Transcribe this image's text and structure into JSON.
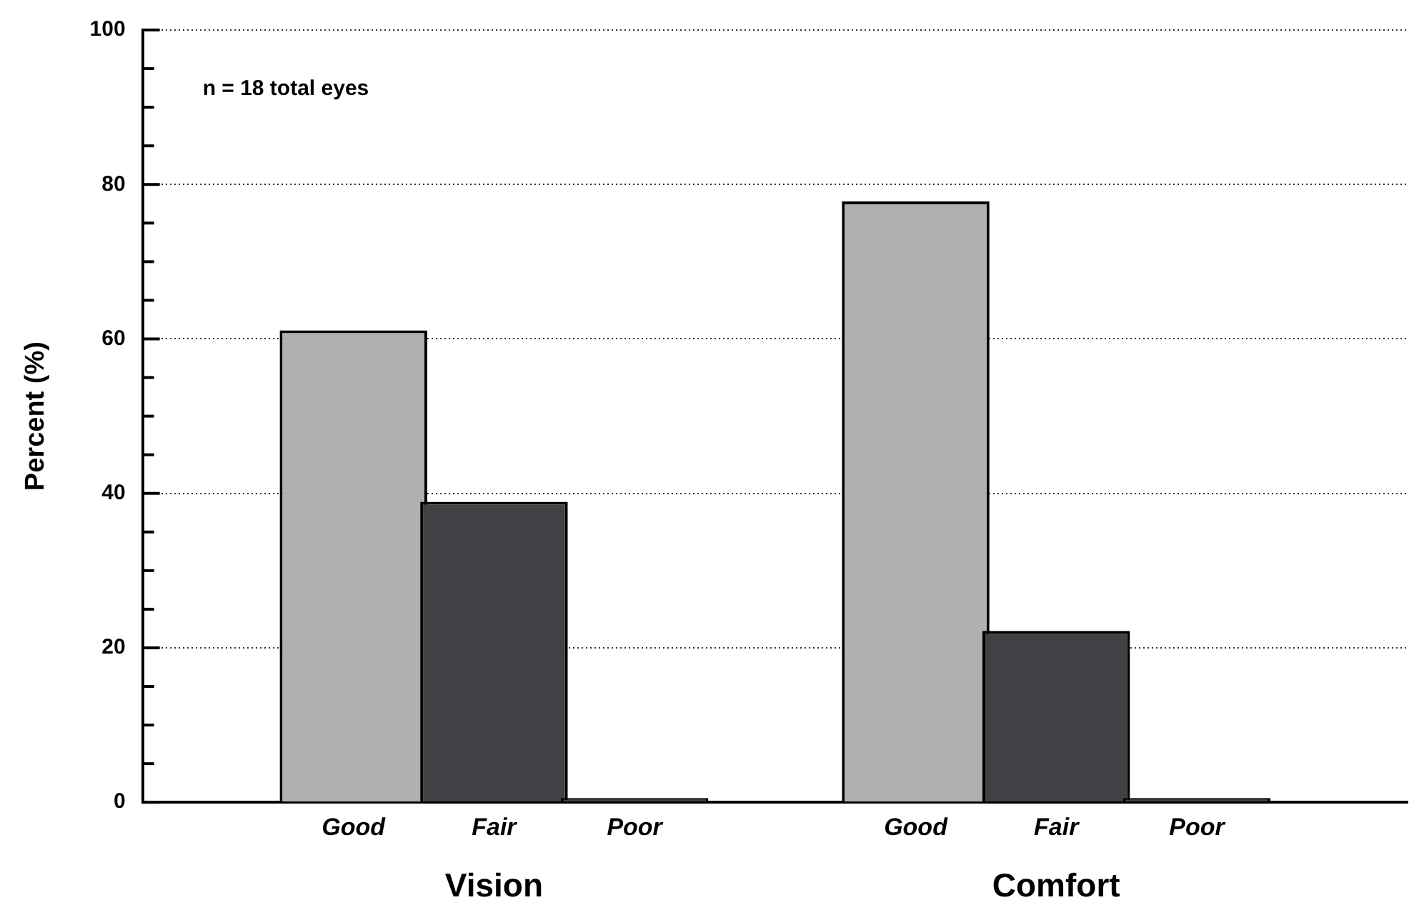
{
  "chart_data": {
    "type": "bar",
    "ylabel": "Percent (%)",
    "categories": [
      null,
      "Good",
      "Fair",
      "Poor",
      null,
      "Good",
      "Fair",
      "Poor",
      null
    ],
    "values": [
      null,
      61.1,
      38.9,
      0,
      null,
      77.8,
      22.2,
      0,
      null
    ],
    "colors": [
      null,
      "#b0b0b0",
      "#404145",
      "#404145",
      null,
      "#b0b0b0",
      "#404145",
      "#404145",
      null
    ],
    "ylim": [
      0,
      100
    ],
    "yticks": [
      0,
      {
        "value": 5,
        "label": null
      },
      {
        "value": 10,
        "label": null
      },
      {
        "value": 15,
        "label": null
      },
      20,
      {
        "value": 25,
        "label": null
      },
      {
        "value": 30,
        "label": null
      },
      {
        "value": 35,
        "label": null
      },
      40,
      {
        "value": 45,
        "label": null
      },
      {
        "value": 50,
        "label": null
      },
      {
        "value": 55,
        "label": null
      },
      60,
      {
        "value": 65,
        "label": null
      },
      {
        "value": 70,
        "label": null
      },
      {
        "value": 75,
        "label": null
      },
      80,
      {
        "value": 85,
        "label": null
      },
      {
        "value": 90,
        "label": null
      },
      {
        "value": 95,
        "label": null
      },
      100
    ],
    "grid": "y",
    "legend": false,
    "annotations": [
      "n = 18 total eyes",
      "Vision",
      "Comfort"
    ]
  }
}
